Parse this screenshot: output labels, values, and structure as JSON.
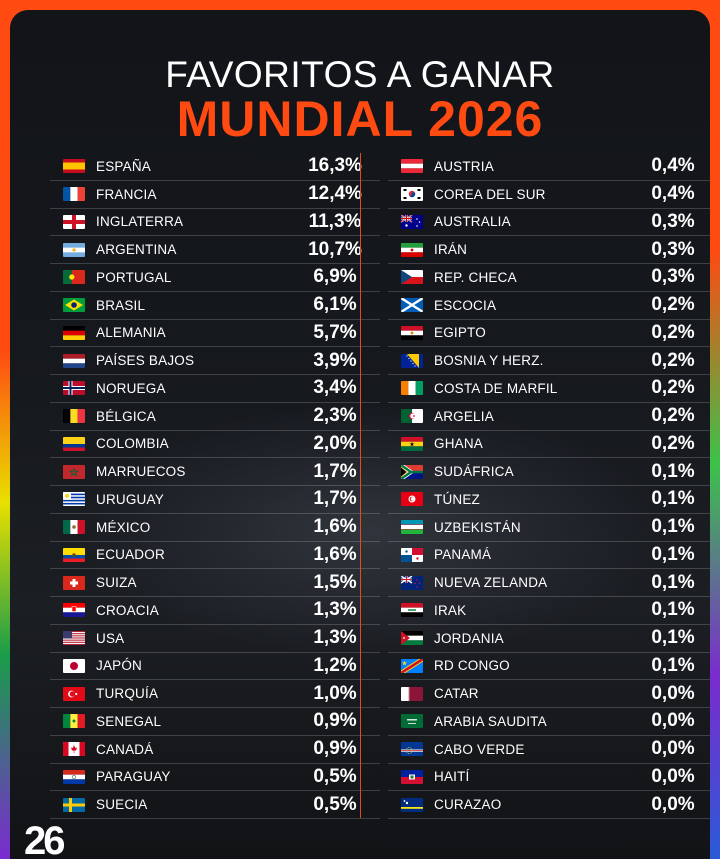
{
  "title": {
    "line1": "FAVORITOS A GANAR",
    "line2": "MUNDIAL 2026"
  },
  "logo_text": "26",
  "left_column": [
    {
      "name": "ESPAÑA",
      "pct": "16,3%",
      "flag": "spain-flag-icon"
    },
    {
      "name": "FRANCIA",
      "pct": "12,4%",
      "flag": "france-flag-icon"
    },
    {
      "name": "INGLATERRA",
      "pct": "11,3%",
      "flag": "england-flag-icon"
    },
    {
      "name": "ARGENTINA",
      "pct": "10,7%",
      "flag": "argentina-flag-icon"
    },
    {
      "name": "PORTUGAL",
      "pct": "6,9%",
      "flag": "portugal-flag-icon"
    },
    {
      "name": "BRASIL",
      "pct": "6,1%",
      "flag": "brazil-flag-icon"
    },
    {
      "name": "ALEMANIA",
      "pct": "5,7%",
      "flag": "germany-flag-icon"
    },
    {
      "name": "PAÍSES BAJOS",
      "pct": "3,9%",
      "flag": "netherlands-flag-icon"
    },
    {
      "name": "NORUEGA",
      "pct": "3,4%",
      "flag": "norway-flag-icon"
    },
    {
      "name": "BÉLGICA",
      "pct": "2,3%",
      "flag": "belgium-flag-icon"
    },
    {
      "name": "COLOMBIA",
      "pct": "2,0%",
      "flag": "colombia-flag-icon"
    },
    {
      "name": "MARRUECOS",
      "pct": "1,7%",
      "flag": "morocco-flag-icon"
    },
    {
      "name": "URUGUAY",
      "pct": "1,7%",
      "flag": "uruguay-flag-icon"
    },
    {
      "name": "MÉXICO",
      "pct": "1,6%",
      "flag": "mexico-flag-icon"
    },
    {
      "name": "ECUADOR",
      "pct": "1,6%",
      "flag": "ecuador-flag-icon"
    },
    {
      "name": "SUIZA",
      "pct": "1,5%",
      "flag": "switzerland-flag-icon"
    },
    {
      "name": "CROACIA",
      "pct": "1,3%",
      "flag": "croatia-flag-icon"
    },
    {
      "name": "USA",
      "pct": "1,3%",
      "flag": "usa-flag-icon"
    },
    {
      "name": "JAPÓN",
      "pct": "1,2%",
      "flag": "japan-flag-icon"
    },
    {
      "name": "TURQUÍA",
      "pct": "1,0%",
      "flag": "turkey-flag-icon"
    },
    {
      "name": "SENEGAL",
      "pct": "0,9%",
      "flag": "senegal-flag-icon"
    },
    {
      "name": "CANADÁ",
      "pct": "0,9%",
      "flag": "canada-flag-icon"
    },
    {
      "name": "PARAGUAY",
      "pct": "0,5%",
      "flag": "paraguay-flag-icon"
    },
    {
      "name": "SUECIA",
      "pct": "0,5%",
      "flag": "sweden-flag-icon"
    }
  ],
  "right_column": [
    {
      "name": "AUSTRIA",
      "pct": "0,4%",
      "flag": "austria-flag-icon"
    },
    {
      "name": "COREA DEL SUR",
      "pct": "0,4%",
      "flag": "south-korea-flag-icon"
    },
    {
      "name": "AUSTRALIA",
      "pct": "0,3%",
      "flag": "australia-flag-icon"
    },
    {
      "name": "IRÁN",
      "pct": "0,3%",
      "flag": "iran-flag-icon"
    },
    {
      "name": "REP. CHECA",
      "pct": "0,3%",
      "flag": "czech-flag-icon"
    },
    {
      "name": "ESCOCIA",
      "pct": "0,2%",
      "flag": "scotland-flag-icon"
    },
    {
      "name": "EGIPTO",
      "pct": "0,2%",
      "flag": "egypt-flag-icon"
    },
    {
      "name": "BOSNIA Y HERZ.",
      "pct": "0,2%",
      "flag": "bosnia-flag-icon"
    },
    {
      "name": "COSTA DE MARFIL",
      "pct": "0,2%",
      "flag": "ivory-coast-flag-icon"
    },
    {
      "name": "ARGELIA",
      "pct": "0,2%",
      "flag": "algeria-flag-icon"
    },
    {
      "name": "GHANA",
      "pct": "0,2%",
      "flag": "ghana-flag-icon"
    },
    {
      "name": "SUDÁFRICA",
      "pct": "0,1%",
      "flag": "south-africa-flag-icon"
    },
    {
      "name": "TÚNEZ",
      "pct": "0,1%",
      "flag": "tunisia-flag-icon"
    },
    {
      "name": "UZBEKISTÁN",
      "pct": "0,1%",
      "flag": "uzbekistan-flag-icon"
    },
    {
      "name": "PANAMÁ",
      "pct": "0,1%",
      "flag": "panama-flag-icon"
    },
    {
      "name": "NUEVA ZELANDA",
      "pct": "0,1%",
      "flag": "new-zealand-flag-icon"
    },
    {
      "name": "IRAK",
      "pct": "0,1%",
      "flag": "iraq-flag-icon"
    },
    {
      "name": "JORDANIA",
      "pct": "0,1%",
      "flag": "jordan-flag-icon"
    },
    {
      "name": "RD CONGO",
      "pct": "0,1%",
      "flag": "dr-congo-flag-icon"
    },
    {
      "name": "CATAR",
      "pct": "0,0%",
      "flag": "qatar-flag-icon"
    },
    {
      "name": "ARABIA SAUDITA",
      "pct": "0,0%",
      "flag": "saudi-arabia-flag-icon"
    },
    {
      "name": "CABO VERDE",
      "pct": "0,0%",
      "flag": "cape-verde-flag-icon"
    },
    {
      "name": "HAITÍ",
      "pct": "0,0%",
      "flag": "haiti-flag-icon"
    },
    {
      "name": "CURAZAO",
      "pct": "0,0%",
      "flag": "curacao-flag-icon"
    }
  ],
  "colors": {
    "accent": "#ff4a12",
    "background": "#15181d",
    "text": "#ffffff"
  }
}
